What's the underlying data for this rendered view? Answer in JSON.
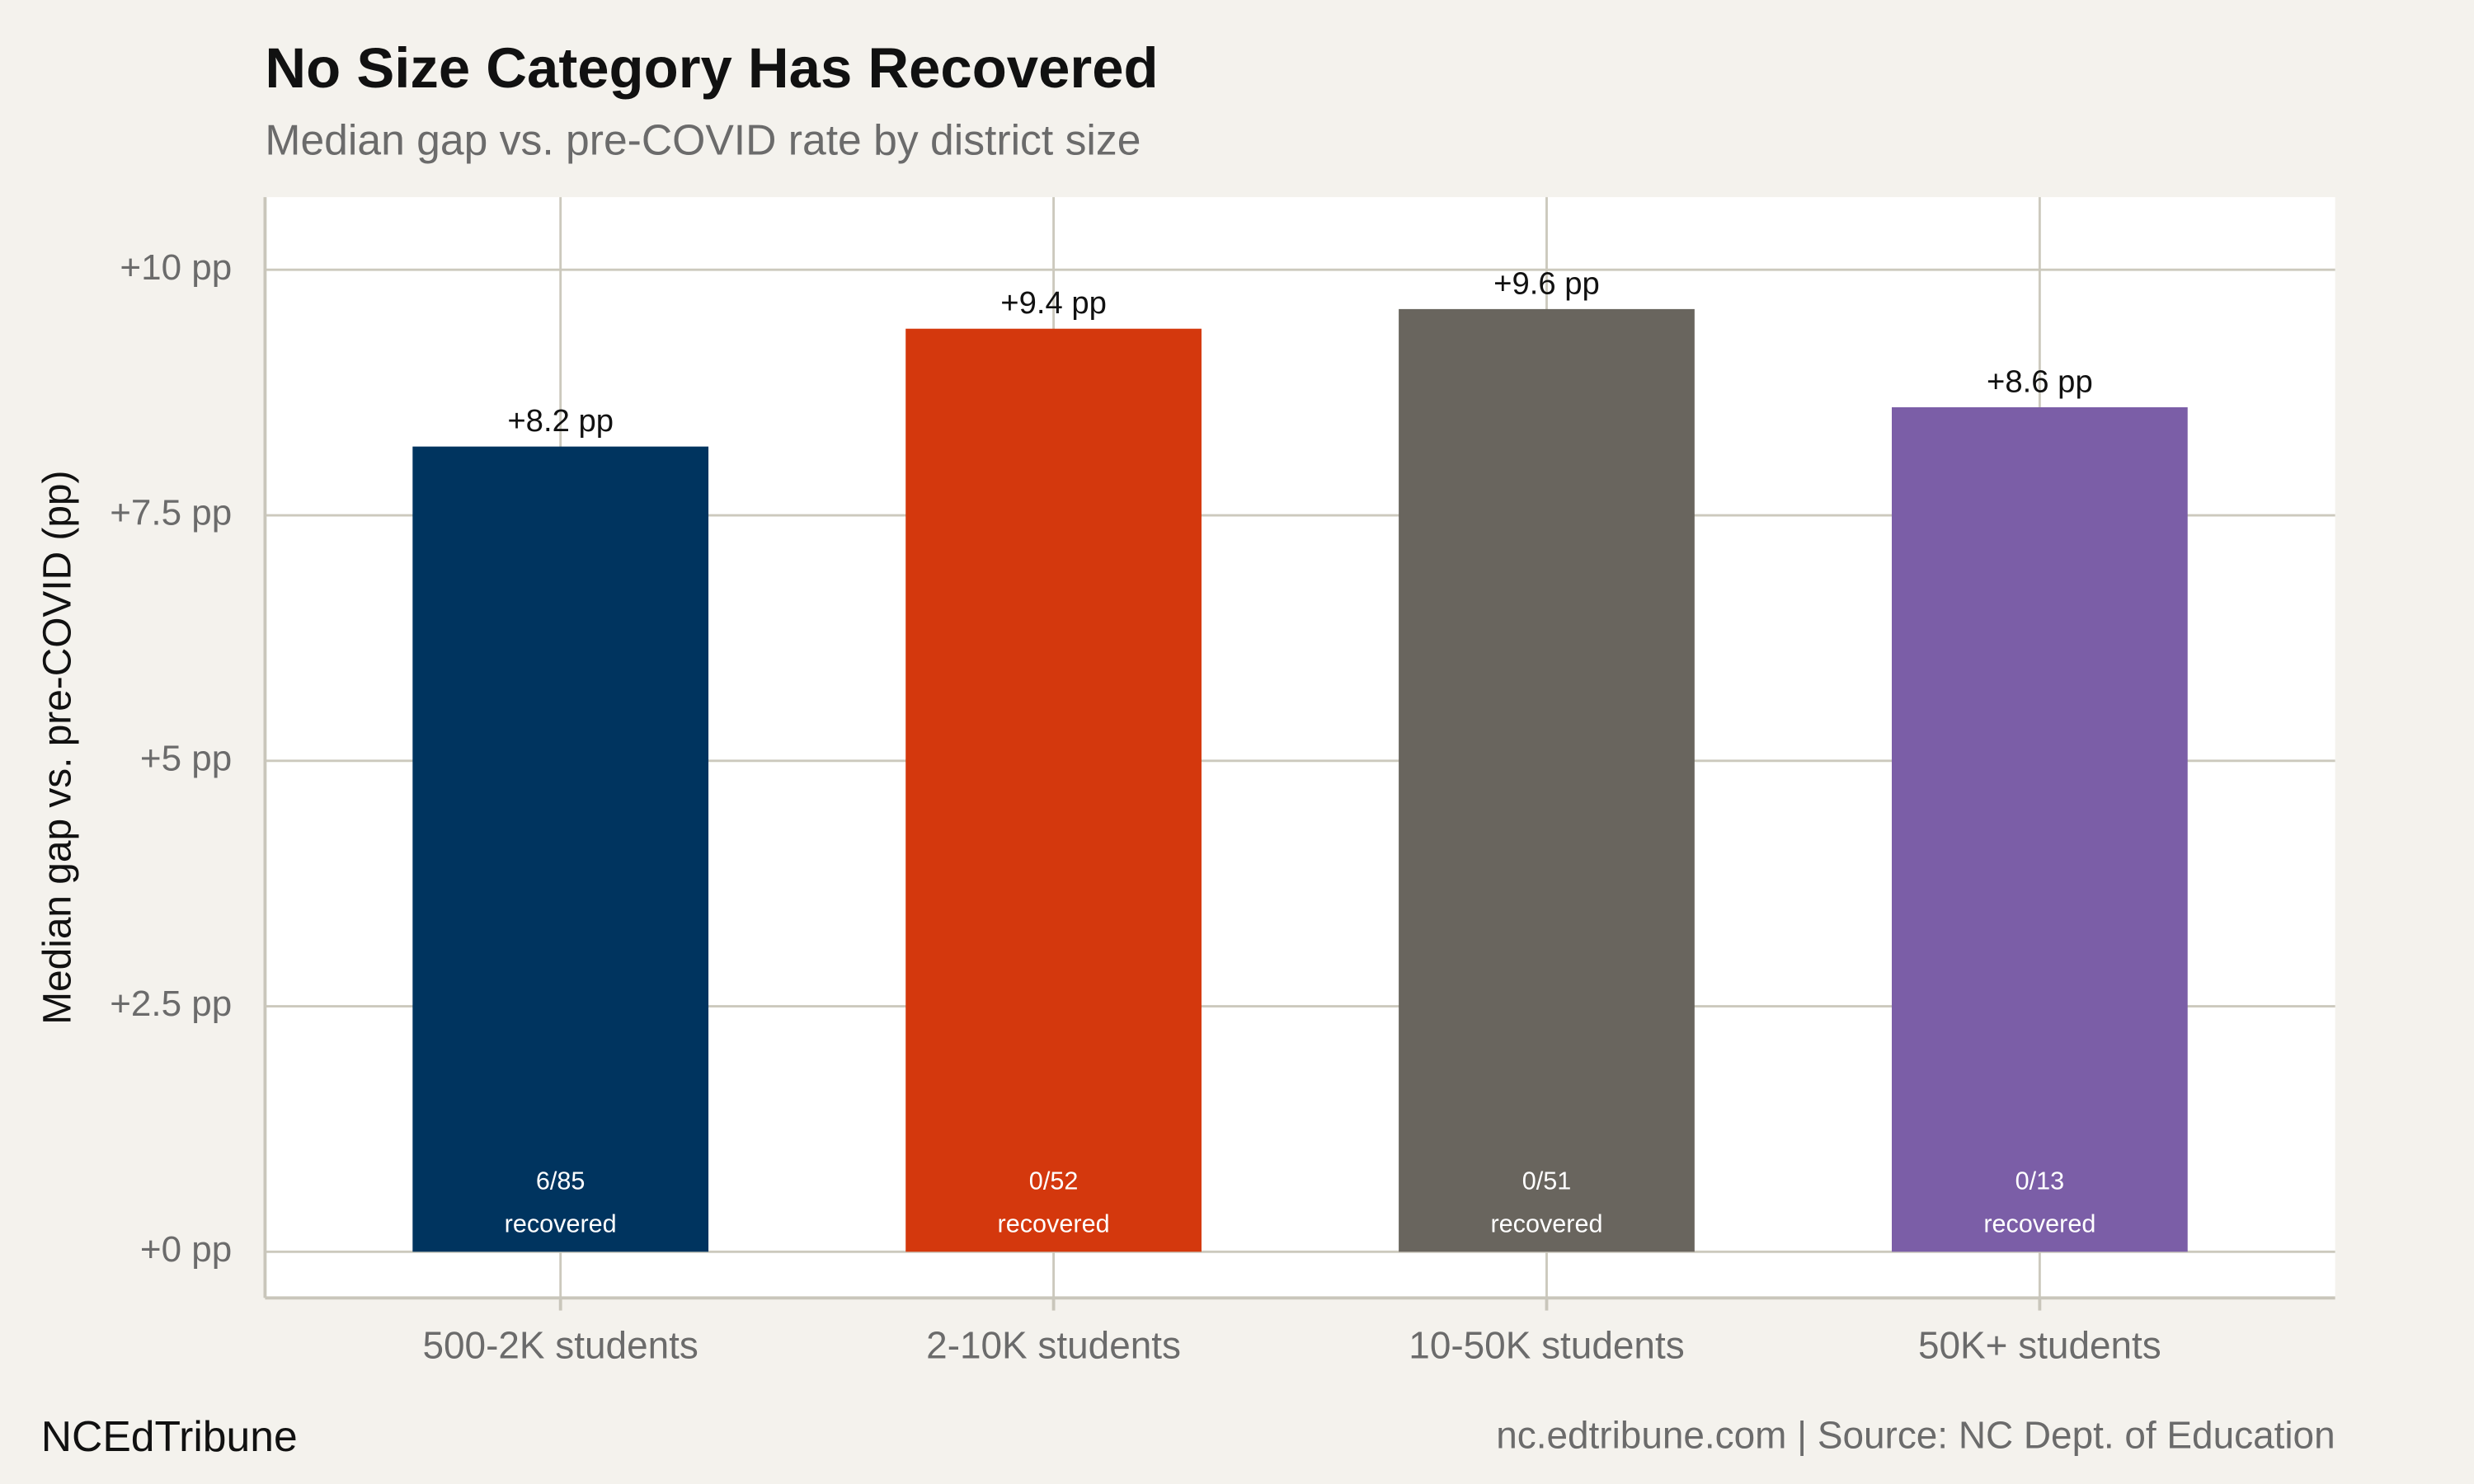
{
  "chart_data": {
    "type": "bar",
    "title": "No Size Category Has Recovered",
    "subtitle": "Median gap vs. pre-COVID rate by district size",
    "y_label": "Median gap vs. pre-COVID (pp)",
    "categories": [
      "500-2K students",
      "2-10K students",
      "10-50K students",
      "50K+ students"
    ],
    "values": [
      8.2,
      9.4,
      9.6,
      8.6
    ],
    "value_labels": [
      "+8.2 pp",
      "+9.4 pp",
      "+9.6 pp",
      "+8.6 pp"
    ],
    "colors": [
      "#00345f",
      "#d4380d",
      "#69655e",
      "#7b5ea7"
    ],
    "bar_notes": [
      {
        "count": "6/85",
        "text": "recovered"
      },
      {
        "count": "0/52",
        "text": "recovered"
      },
      {
        "count": "0/51",
        "text": "recovered"
      },
      {
        "count": "0/13",
        "text": "recovered"
      }
    ],
    "ylim": [
      -0.47,
      10.74
    ],
    "yticks": [
      {
        "value": 0,
        "label": "+0 pp"
      },
      {
        "value": 2.5,
        "label": "+2.5 pp"
      },
      {
        "value": 5,
        "label": "+5 pp"
      },
      {
        "value": 7.5,
        "label": "+7.5 pp"
      },
      {
        "value": 10,
        "label": "+10 pp"
      }
    ],
    "grid": true,
    "brand": "NCEdTribune",
    "source": "nc.edtribune.com | Source: NC Dept. of Education"
  }
}
